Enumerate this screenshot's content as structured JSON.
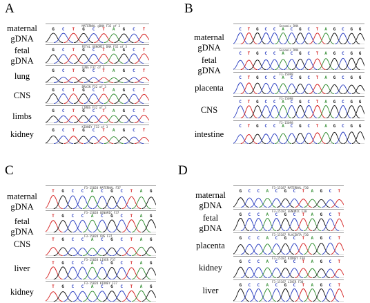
{
  "colors": {
    "A": "#2e8b2e",
    "C": "#2b3fc0",
    "G": "#111111",
    "T": "#d42020"
  },
  "panels": [
    {
      "letter": "A",
      "tracks": [
        {
          "label": [
            "maternal",
            "gDNA"
          ],
          "header": "MATERNAL gDNA F32 of 3",
          "bases": "GCTGCTAGCT"
        },
        {
          "label": [
            "fetal",
            "gDNA"
          ],
          "header": "FETAL GENOMIC DNA F32 of 3",
          "bases": "GCTGCTAGCT"
        },
        {
          "label": [
            "lung"
          ],
          "header": "LUNG F32 of 3",
          "bases": "GCTGCTAGCT"
        },
        {
          "label": [
            "CNS"
          ],
          "header": "BRAIN F32 of 3",
          "bases": "GCTGCTAGCT"
        },
        {
          "label": [
            "limbs"
          ],
          "header": "LIMBS F32 of 3",
          "bases": "GCTGCTAGCT"
        },
        {
          "label": [
            "kidney"
          ],
          "header": "KIDNEY F32 of 3",
          "bases": "GCTGCTAGCT"
        }
      ]
    },
    {
      "letter": "B",
      "tracks": [
        {
          "label": [
            "maternal",
            "gDNA"
          ],
          "header": "Genomic DNA",
          "bases": "CTGCCACGCTAGCGG"
        },
        {
          "label": [
            "fetal",
            "gDNA"
          ],
          "header": "Genomic DNA",
          "bases": "CTGCCACGCTAGCGG"
        },
        {
          "label": [
            "placenta"
          ],
          "header": "F3-15098",
          "bases": "CTGCCACGCTAGCGG"
        },
        {
          "label": [
            "CNS"
          ],
          "header": "F3-15098",
          "bases": "CTGCCACGCTAGCGG"
        },
        {
          "label": [
            "intestine"
          ],
          "header": "F3-15098",
          "bases": "CTGCCACGCTAGCGG"
        }
      ]
    },
    {
      "letter": "C",
      "tracks": [
        {
          "label": [
            "maternal",
            "gDNA"
          ],
          "header": "F3-15028 MATERNAL F37",
          "bases": "TGCCACGCTAG"
        },
        {
          "label": [
            "fetal",
            "gDNA"
          ],
          "header": "F3-15028 GENOMIC F37",
          "bases": "TGCCACGCTAG"
        },
        {
          "label": [
            "CNS"
          ],
          "header": "F3-15028 CNS F37",
          "bases": "TGCCACGCTAG"
        },
        {
          "label": [
            "liver"
          ],
          "header": "F3-15028 LIVER F37",
          "bases": "TGCCACGCTAG"
        },
        {
          "label": [
            "kidney"
          ],
          "header": "F3-15028 KIDNEY F37",
          "bases": "TGCCACGCTAG"
        }
      ]
    },
    {
      "letter": "D",
      "tracks": [
        {
          "label": [
            "maternal",
            "gDNA"
          ],
          "header": "F3-15187 MATERNAL F30",
          "bases": "GCCACGCTAGCT"
        },
        {
          "label": [
            "fetal",
            "gDNA"
          ],
          "header": "F3-15187 GENOMIC F30",
          "bases": "GCCACGCTAGCT"
        },
        {
          "label": [
            "placenta"
          ],
          "header": "F3-15187 PLACENTA F30",
          "bases": "GCCACGCTAGCT"
        },
        {
          "label": [
            "kidney"
          ],
          "header": "F3-15187 KIDNEY F30",
          "bases": "GCCACGCTAGCT"
        },
        {
          "label": [
            "liver"
          ],
          "header": "F3-15187 LIVER F30",
          "bases": "GCCACGCTAGCT"
        }
      ]
    }
  ]
}
